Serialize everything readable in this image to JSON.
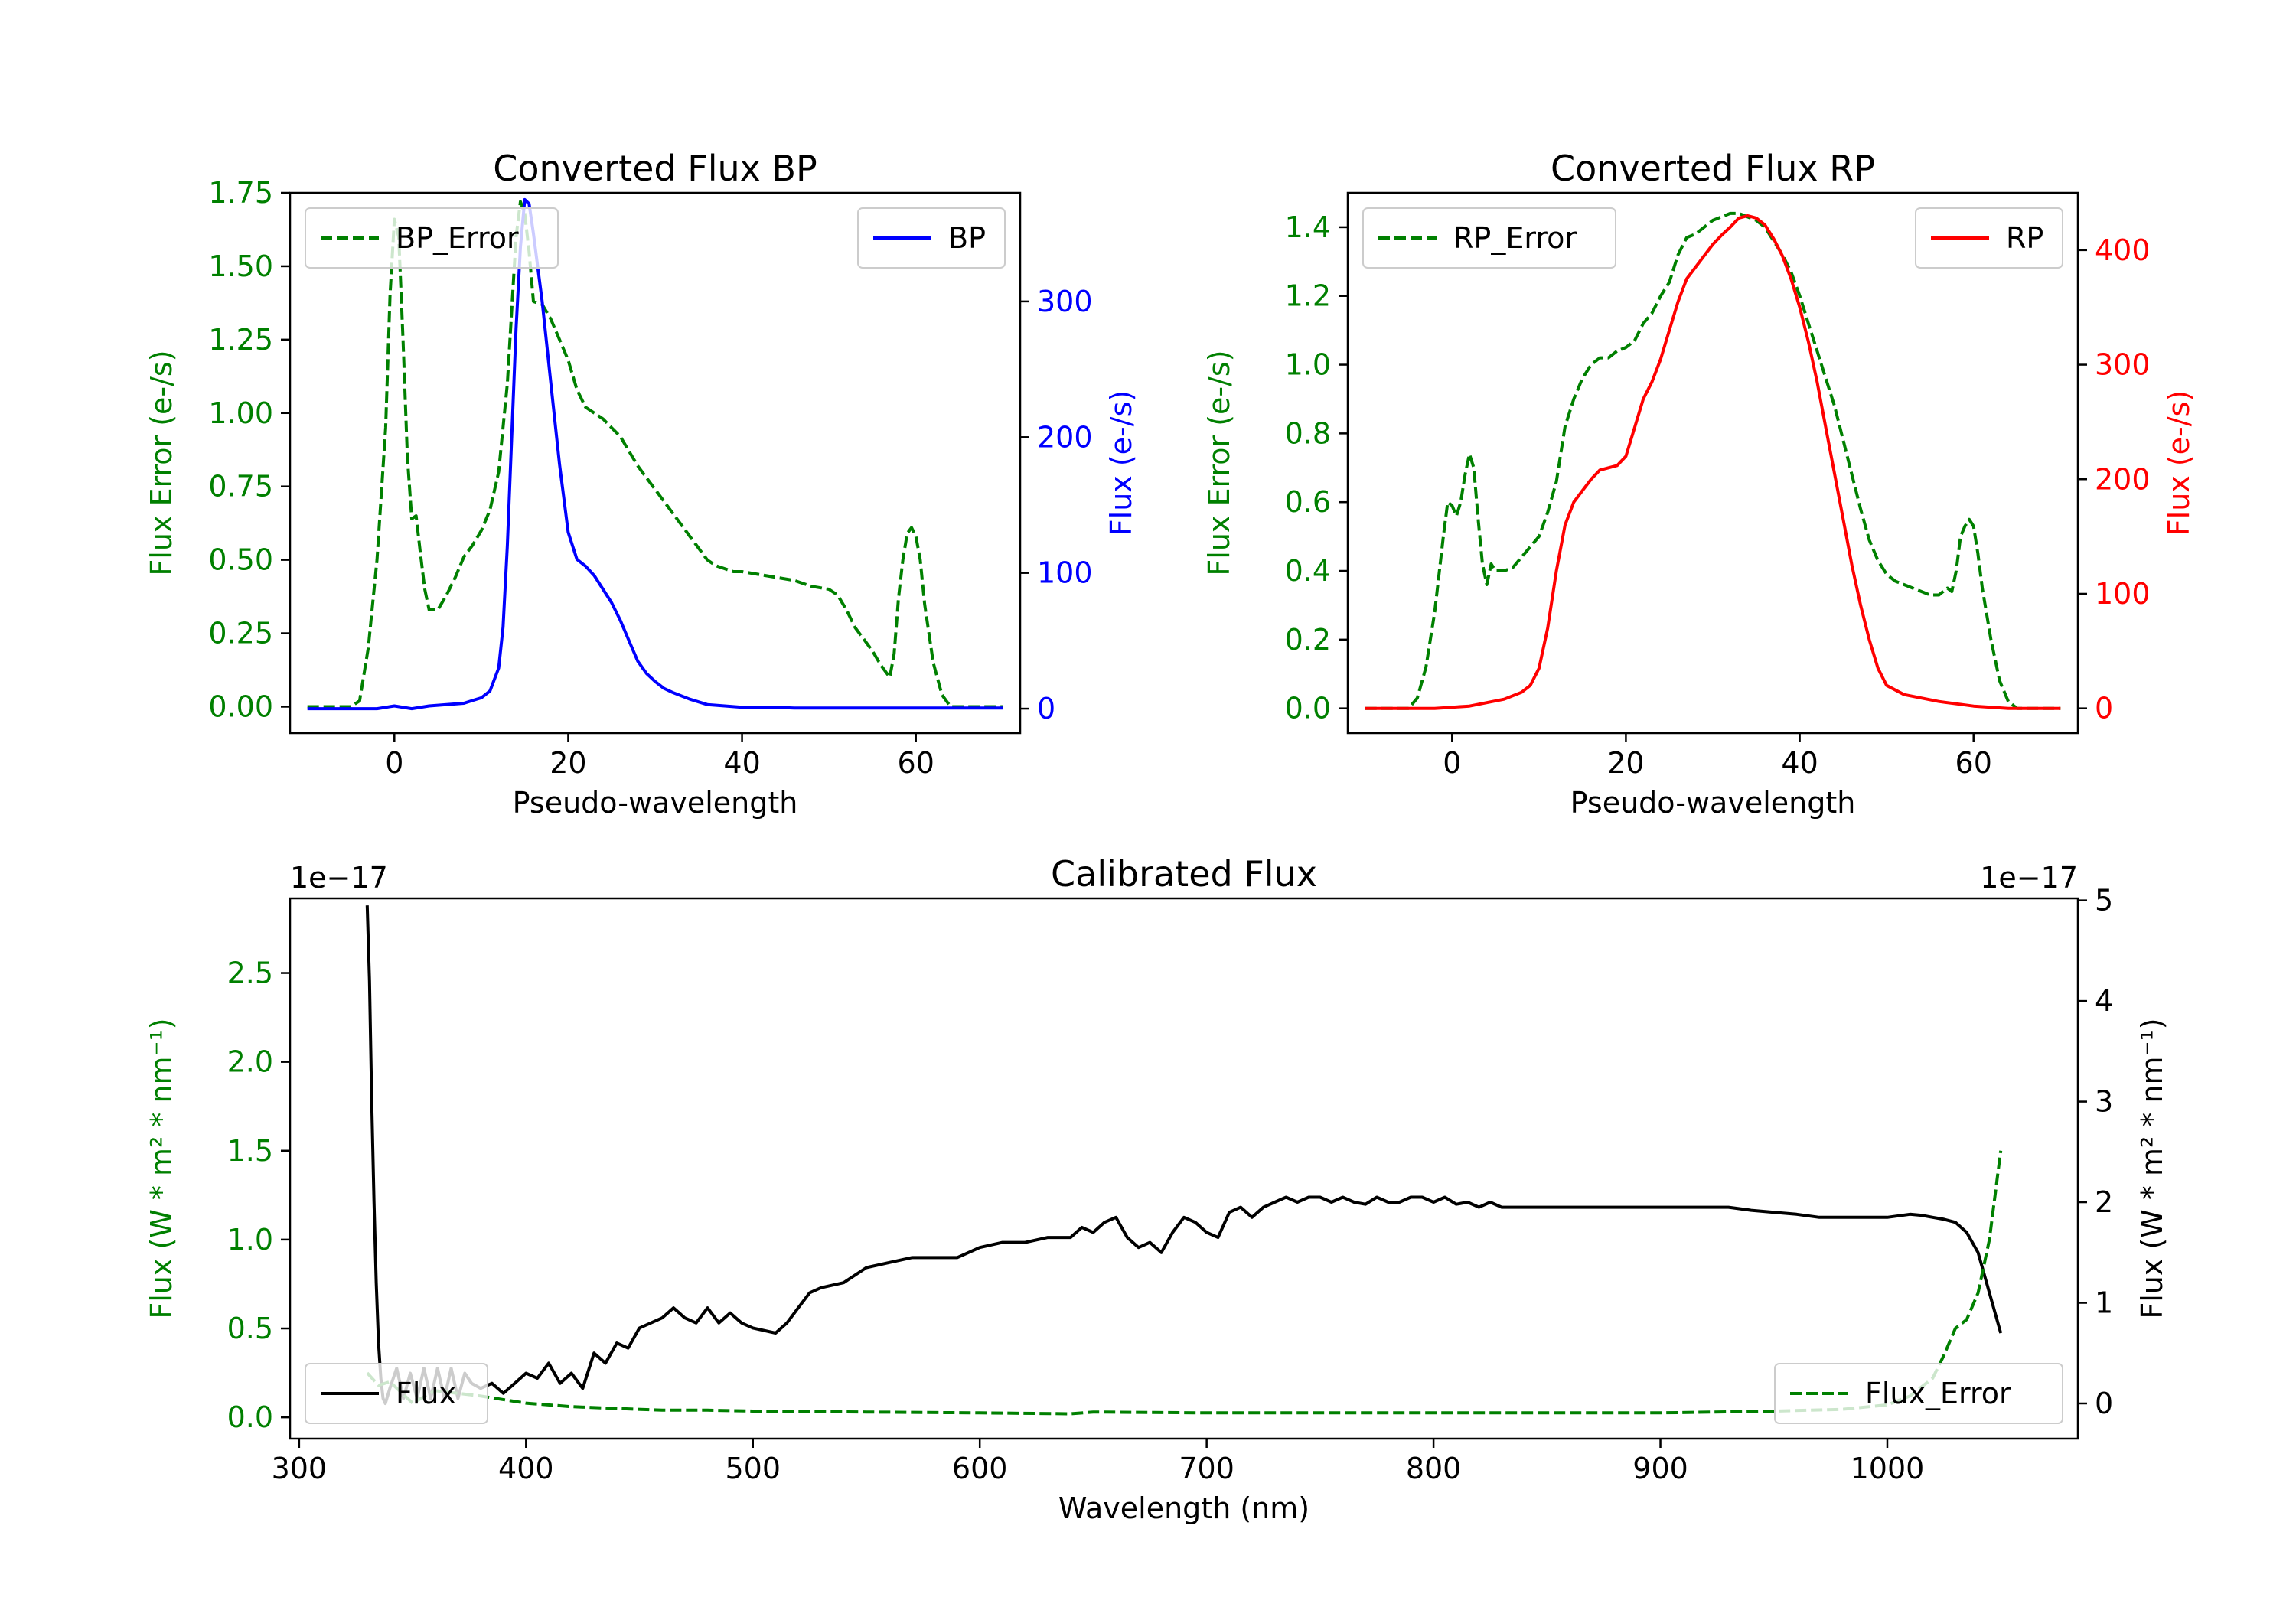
{
  "chart_data": [
    {
      "id": "bp",
      "type": "line",
      "title": "Converted Flux BP",
      "xlabel": "Pseudo-wavelength",
      "xlim": [
        -12,
        72
      ],
      "xticks": [
        0,
        20,
        40,
        60
      ],
      "left_axis": {
        "label": "Flux Error (e-/s)",
        "color": "#008000",
        "ylim": [
          -0.09,
          1.75
        ],
        "ticks": [
          0.0,
          0.25,
          0.5,
          0.75,
          1.0,
          1.25,
          1.5,
          1.75
        ],
        "tick_labels": [
          "0.00",
          "0.25",
          "0.50",
          "0.75",
          "1.00",
          "1.25",
          "1.50",
          "1.75"
        ]
      },
      "right_axis": {
        "label": "Flux (e-/s)",
        "color": "#0000ff",
        "ylim": [
          -18,
          380
        ],
        "ticks": [
          0,
          100,
          200,
          300
        ],
        "tick_labels": [
          "0",
          "100",
          "200",
          "300"
        ]
      },
      "series": [
        {
          "name": "BP_Error",
          "axis": "left",
          "color": "#008000",
          "style": "dashed",
          "legend_pos": "upper-left",
          "x": [
            -10,
            -5,
            -4,
            -3,
            -2,
            -1,
            -0.5,
            0,
            0.5,
            1,
            1.5,
            2,
            2.5,
            3,
            3.5,
            4,
            5,
            6,
            7,
            8,
            9,
            10,
            11,
            12,
            13,
            13.5,
            14,
            14.5,
            15,
            15.5,
            16,
            17,
            18,
            19,
            20,
            21,
            22,
            23,
            24,
            25,
            26,
            27,
            28,
            29,
            30,
            31,
            32,
            33,
            34,
            35,
            36,
            37,
            38,
            39,
            40,
            42,
            44,
            46,
            48,
            50,
            51,
            52,
            53,
            54,
            55,
            56,
            57,
            57.5,
            58,
            58.5,
            59,
            59.5,
            60,
            60.5,
            61,
            62,
            63,
            64,
            65,
            66,
            70
          ],
          "y": [
            0,
            0,
            0.02,
            0.2,
            0.5,
            0.95,
            1.4,
            1.66,
            1.6,
            1.25,
            0.85,
            0.64,
            0.65,
            0.52,
            0.4,
            0.33,
            0.33,
            0.38,
            0.44,
            0.51,
            0.55,
            0.6,
            0.67,
            0.8,
            1.1,
            1.35,
            1.6,
            1.72,
            1.68,
            1.55,
            1.38,
            1.37,
            1.32,
            1.25,
            1.18,
            1.08,
            1.02,
            1.0,
            0.98,
            0.95,
            0.92,
            0.87,
            0.82,
            0.78,
            0.74,
            0.7,
            0.66,
            0.62,
            0.58,
            0.54,
            0.5,
            0.48,
            0.47,
            0.46,
            0.46,
            0.45,
            0.44,
            0.43,
            0.41,
            0.4,
            0.38,
            0.33,
            0.27,
            0.23,
            0.19,
            0.14,
            0.1,
            0.18,
            0.37,
            0.5,
            0.59,
            0.61,
            0.58,
            0.5,
            0.35,
            0.15,
            0.04,
            0,
            0,
            0,
            0
          ]
        },
        {
          "name": "BP",
          "axis": "right",
          "color": "#0000ff",
          "style": "solid",
          "legend_pos": "upper-right",
          "x": [
            -10,
            -2,
            0,
            2,
            4,
            6,
            8,
            9,
            10,
            11,
            12,
            12.5,
            13,
            13.5,
            14,
            14.5,
            15,
            15.5,
            16,
            17,
            18,
            19,
            20,
            21,
            22,
            23,
            24,
            25,
            26,
            27,
            28,
            29,
            30,
            31,
            32,
            34,
            36,
            38,
            40,
            42,
            44,
            46,
            50,
            55,
            60,
            65,
            70
          ],
          "y": [
            0,
            0,
            2,
            0,
            2,
            3,
            4,
            6,
            8,
            13,
            30,
            60,
            120,
            200,
            280,
            340,
            375,
            372,
            350,
            300,
            240,
            180,
            130,
            110,
            105,
            98,
            88,
            78,
            65,
            50,
            35,
            26,
            20,
            15,
            12,
            7,
            3,
            2,
            1,
            1,
            1,
            0.5,
            0.5,
            0.5,
            0.5,
            0.5,
            0.5
          ]
        }
      ]
    },
    {
      "id": "rp",
      "type": "line",
      "title": "Converted Flux RP",
      "xlabel": "Pseudo-wavelength",
      "xlim": [
        -12,
        72
      ],
      "xticks": [
        0,
        20,
        40,
        60
      ],
      "left_axis": {
        "label": "Flux Error (e-/s)",
        "color": "#008000",
        "ylim": [
          -0.072,
          1.5
        ],
        "ticks": [
          0.0,
          0.2,
          0.4,
          0.6,
          0.8,
          1.0,
          1.2,
          1.4
        ],
        "tick_labels": [
          "0.0",
          "0.2",
          "0.4",
          "0.6",
          "0.8",
          "1.0",
          "1.2",
          "1.4"
        ]
      },
      "right_axis": {
        "label": "Flux (e-/s)",
        "color": "#ff0000",
        "ylim": [
          -21.6,
          450
        ],
        "ticks": [
          0,
          100,
          200,
          300,
          400
        ],
        "tick_labels": [
          "0",
          "100",
          "200",
          "300",
          "400"
        ]
      },
      "series": [
        {
          "name": "RP_Error",
          "axis": "left",
          "color": "#008000",
          "style": "dashed",
          "legend_pos": "upper-left",
          "x": [
            -10,
            -5,
            -4,
            -3,
            -2,
            -1,
            -0.5,
            0,
            0.5,
            1,
            1.5,
            2,
            2.5,
            3,
            3.5,
            4,
            4.5,
            5,
            6,
            7,
            8,
            9,
            10,
            11,
            12,
            13,
            14,
            15,
            16,
            17,
            18,
            19,
            20,
            21,
            22,
            23,
            24,
            25,
            26,
            27,
            28,
            29,
            30,
            31,
            32,
            33,
            34,
            35,
            36,
            37,
            38,
            39,
            40,
            41,
            42,
            43,
            44,
            45,
            46,
            47,
            48,
            49,
            50,
            51,
            52,
            53,
            54,
            55,
            56,
            57,
            57.5,
            58,
            58.5,
            59,
            59.5,
            60,
            60.5,
            61,
            62,
            63,
            64,
            65,
            70
          ],
          "y": [
            0,
            0,
            0.03,
            0.12,
            0.28,
            0.5,
            0.6,
            0.59,
            0.56,
            0.6,
            0.68,
            0.74,
            0.7,
            0.55,
            0.42,
            0.36,
            0.42,
            0.4,
            0.4,
            0.41,
            0.44,
            0.47,
            0.5,
            0.57,
            0.66,
            0.82,
            0.9,
            0.96,
            1.0,
            1.02,
            1.02,
            1.04,
            1.05,
            1.07,
            1.12,
            1.15,
            1.2,
            1.24,
            1.32,
            1.37,
            1.38,
            1.4,
            1.42,
            1.43,
            1.44,
            1.44,
            1.43,
            1.42,
            1.4,
            1.36,
            1.32,
            1.27,
            1.2,
            1.12,
            1.04,
            0.96,
            0.88,
            0.78,
            0.68,
            0.58,
            0.49,
            0.43,
            0.39,
            0.37,
            0.36,
            0.35,
            0.34,
            0.33,
            0.33,
            0.35,
            0.34,
            0.4,
            0.5,
            0.53,
            0.55,
            0.53,
            0.45,
            0.35,
            0.2,
            0.08,
            0.02,
            0,
            0
          ]
        },
        {
          "name": "RP",
          "axis": "right",
          "color": "#ff0000",
          "style": "solid",
          "legend_pos": "upper-right",
          "x": [
            -10,
            -2,
            0,
            2,
            4,
            6,
            8,
            9,
            10,
            11,
            12,
            13,
            14,
            15,
            16,
            17,
            18,
            19,
            20,
            21,
            22,
            23,
            24,
            25,
            26,
            27,
            28,
            29,
            30,
            31,
            32,
            33,
            34,
            35,
            36,
            37,
            38,
            39,
            40,
            41,
            42,
            43,
            44,
            45,
            46,
            47,
            48,
            49,
            50,
            52,
            54,
            56,
            58,
            60,
            62,
            64,
            66,
            70
          ],
          "y": [
            0,
            0,
            1,
            2,
            5,
            8,
            14,
            20,
            35,
            70,
            120,
            160,
            180,
            190,
            200,
            208,
            210,
            212,
            220,
            245,
            270,
            285,
            305,
            330,
            355,
            375,
            385,
            395,
            405,
            413,
            420,
            428,
            430,
            428,
            422,
            410,
            395,
            375,
            350,
            320,
            285,
            245,
            205,
            165,
            125,
            90,
            60,
            35,
            20,
            12,
            9,
            6,
            4,
            2,
            1,
            0,
            0,
            0
          ]
        }
      ]
    },
    {
      "id": "cal",
      "type": "line",
      "title": "Calibrated Flux",
      "xlabel": "Wavelength (nm)",
      "xlim": [
        296,
        1084
      ],
      "xticks": [
        300,
        400,
        500,
        600,
        700,
        800,
        900,
        1000
      ],
      "left_axis": {
        "label": "Flux (W * m² * nm⁻¹)",
        "color": "#008000",
        "ylim": [
          -0.12,
          2.92
        ],
        "offset_text": "1e−17",
        "ticks": [
          0.0,
          0.5,
          1.0,
          1.5,
          2.0,
          2.5
        ],
        "tick_labels": [
          "0.0",
          "0.5",
          "1.0",
          "1.5",
          "2.0",
          "2.5"
        ]
      },
      "right_axis": {
        "label": "Flux (W * m² * nm⁻¹)",
        "color": "#000000",
        "ylim": [
          -0.35,
          5.02
        ],
        "offset_text": "1e−17",
        "ticks": [
          0,
          1,
          2,
          3,
          4,
          5
        ],
        "tick_labels": [
          "0",
          "1",
          "2",
          "3",
          "4",
          "5"
        ]
      },
      "series": [
        {
          "name": "Flux",
          "axis": "right",
          "color": "#000000",
          "style": "solid",
          "legend_pos": "lower-left",
          "x": [
            330,
            331,
            332,
            333,
            334,
            335,
            336,
            337,
            338,
            340,
            343,
            346,
            349,
            352,
            355,
            358,
            361,
            364,
            367,
            370,
            373,
            376,
            380,
            385,
            390,
            395,
            400,
            405,
            410,
            415,
            420,
            425,
            430,
            435,
            440,
            445,
            450,
            455,
            460,
            465,
            470,
            475,
            480,
            485,
            490,
            495,
            500,
            510,
            515,
            520,
            525,
            530,
            540,
            550,
            560,
            570,
            580,
            590,
            600,
            610,
            620,
            630,
            640,
            645,
            650,
            655,
            660,
            665,
            670,
            675,
            680,
            685,
            690,
            695,
            700,
            705,
            710,
            715,
            720,
            725,
            730,
            735,
            740,
            745,
            750,
            755,
            760,
            765,
            770,
            775,
            780,
            785,
            790,
            795,
            800,
            805,
            810,
            815,
            820,
            825,
            830,
            840,
            850,
            860,
            870,
            880,
            890,
            900,
            910,
            920,
            930,
            940,
            950,
            960,
            970,
            980,
            990,
            1000,
            1010,
            1015,
            1020,
            1025,
            1030,
            1035,
            1040,
            1045,
            1050
          ],
          "y": [
            4.95,
            4.2,
            3.0,
            2.0,
            1.2,
            0.6,
            0.25,
            0.05,
            0.0,
            0.15,
            0.35,
            0.05,
            0.3,
            0.05,
            0.35,
            0.05,
            0.35,
            0.05,
            0.35,
            0.05,
            0.3,
            0.2,
            0.15,
            0.2,
            0.1,
            0.2,
            0.3,
            0.25,
            0.4,
            0.2,
            0.3,
            0.15,
            0.5,
            0.4,
            0.6,
            0.55,
            0.75,
            0.8,
            0.85,
            0.95,
            0.85,
            0.8,
            0.95,
            0.8,
            0.9,
            0.8,
            0.75,
            0.7,
            0.8,
            0.95,
            1.1,
            1.15,
            1.2,
            1.35,
            1.4,
            1.45,
            1.45,
            1.45,
            1.55,
            1.6,
            1.6,
            1.65,
            1.65,
            1.75,
            1.7,
            1.8,
            1.85,
            1.65,
            1.55,
            1.6,
            1.5,
            1.7,
            1.85,
            1.8,
            1.7,
            1.65,
            1.9,
            1.95,
            1.85,
            1.95,
            2.0,
            2.05,
            2.0,
            2.05,
            2.05,
            2.0,
            2.05,
            2.0,
            1.98,
            2.05,
            2.0,
            2.0,
            2.05,
            2.05,
            2.0,
            2.05,
            1.98,
            2.0,
            1.95,
            2.0,
            1.95,
            1.95,
            1.95,
            1.95,
            1.95,
            1.95,
            1.95,
            1.95,
            1.95,
            1.95,
            1.95,
            1.92,
            1.9,
            1.88,
            1.85,
            1.85,
            1.85,
            1.85,
            1.88,
            1.87,
            1.85,
            1.83,
            1.8,
            1.7,
            1.5,
            1.1,
            0.7
          ]
        },
        {
          "name": "Flux_Error",
          "axis": "left",
          "color": "#008000",
          "style": "dashed",
          "legend_pos": "lower-right",
          "x": [
            330,
            335,
            340,
            350,
            360,
            380,
            400,
            420,
            440,
            460,
            480,
            500,
            550,
            600,
            640,
            650,
            700,
            750,
            800,
            850,
            900,
            950,
            980,
            1000,
            1010,
            1020,
            1025,
            1030,
            1035,
            1040,
            1045,
            1050
          ],
          "y": [
            0.25,
            0.18,
            0.2,
            0.08,
            0.15,
            0.12,
            0.08,
            0.06,
            0.05,
            0.04,
            0.04,
            0.035,
            0.03,
            0.025,
            0.02,
            0.03,
            0.025,
            0.025,
            0.025,
            0.025,
            0.025,
            0.035,
            0.045,
            0.07,
            0.12,
            0.22,
            0.35,
            0.5,
            0.55,
            0.7,
            1.0,
            1.5
          ]
        }
      ]
    }
  ]
}
